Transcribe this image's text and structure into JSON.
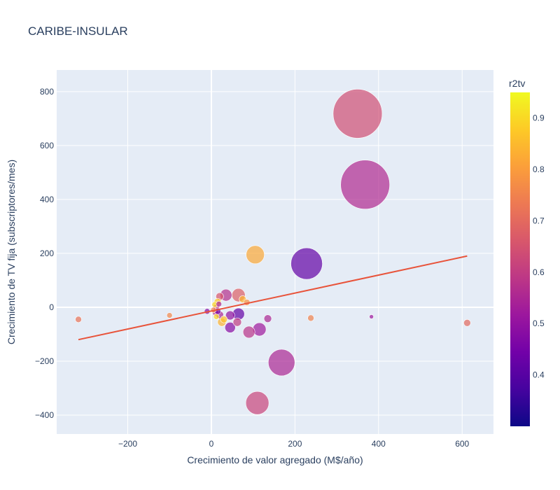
{
  "chart_data": {
    "type": "scatter",
    "title": "CARIBE-INSULAR",
    "xlabel": "Crecimiento de valor agregado (M$/año)",
    "ylabel": "Crecimiento de TV fija (subscriptores/mes)",
    "xlim": [
      -370,
      675
    ],
    "ylim": [
      -470,
      880
    ],
    "x_ticks": [
      -200,
      0,
      200,
      400,
      600
    ],
    "y_ticks": [
      -400,
      -200,
      0,
      200,
      400,
      600,
      800
    ],
    "x_tick_labels": [
      "−200",
      "0",
      "200",
      "400",
      "600"
    ],
    "y_tick_labels": [
      "−400",
      "−200",
      "0",
      "200",
      "400",
      "600",
      "800"
    ],
    "grid": true,
    "colorbar": {
      "title": "r2tv",
      "min": 0.3,
      "max": 0.95,
      "ticks": [
        0.4,
        0.5,
        0.6,
        0.7,
        0.8,
        0.9
      ],
      "tick_labels": [
        "0.4",
        "0.5",
        "0.6",
        "0.7",
        "0.8",
        "0.9"
      ],
      "colorscale": [
        "#0d0887",
        "#46039f",
        "#7201a8",
        "#9c179e",
        "#bd3786",
        "#d8576b",
        "#ed7953",
        "#fb9f3a",
        "#fdca26",
        "#f0f921"
      ]
    },
    "trendline": {
      "color": "#e8533a",
      "points": [
        [
          -318,
          -120
        ],
        [
          612,
          190
        ]
      ]
    },
    "points": [
      {
        "x": 350,
        "y": 718,
        "size": 70,
        "c": 0.64
      },
      {
        "x": 368,
        "y": 455,
        "size": 70,
        "c": 0.56
      },
      {
        "x": 228,
        "y": 162,
        "size": 45,
        "c": 0.42
      },
      {
        "x": 105,
        "y": 195,
        "size": 26,
        "c": 0.82
      },
      {
        "x": 168,
        "y": -205,
        "size": 38,
        "c": 0.55
      },
      {
        "x": 110,
        "y": -355,
        "size": 33,
        "c": 0.62
      },
      {
        "x": 115,
        "y": -82,
        "size": 19,
        "c": 0.52
      },
      {
        "x": 90,
        "y": -92,
        "size": 17,
        "c": 0.58
      },
      {
        "x": 135,
        "y": -42,
        "size": 11,
        "c": 0.55
      },
      {
        "x": 65,
        "y": 45,
        "size": 19,
        "c": 0.68
      },
      {
        "x": 35,
        "y": 45,
        "size": 17,
        "c": 0.57
      },
      {
        "x": 65,
        "y": -25,
        "size": 17,
        "c": 0.42
      },
      {
        "x": 45,
        "y": -75,
        "size": 15,
        "c": 0.48
      },
      {
        "x": 45,
        "y": -30,
        "size": 13,
        "c": 0.5
      },
      {
        "x": 62,
        "y": -55,
        "size": 12,
        "c": 0.6
      },
      {
        "x": 25,
        "y": -55,
        "size": 12,
        "c": 0.84
      },
      {
        "x": 20,
        "y": -28,
        "size": 11,
        "c": 0.55
      },
      {
        "x": 30,
        "y": -45,
        "size": 10,
        "c": 0.86
      },
      {
        "x": 20,
        "y": 40,
        "size": 11,
        "c": 0.66
      },
      {
        "x": 15,
        "y": 20,
        "size": 10,
        "c": 0.88
      },
      {
        "x": 12,
        "y": 0,
        "size": 9,
        "c": 0.62
      },
      {
        "x": 10,
        "y": -20,
        "size": 9,
        "c": 0.58
      },
      {
        "x": 15,
        "y": -15,
        "size": 9,
        "c": 0.45
      },
      {
        "x": 8,
        "y": 10,
        "size": 8,
        "c": 0.9
      },
      {
        "x": 18,
        "y": 12,
        "size": 8,
        "c": 0.55
      },
      {
        "x": 12,
        "y": -35,
        "size": 8,
        "c": 0.9
      },
      {
        "x": 75,
        "y": 30,
        "size": 10,
        "c": 0.84
      },
      {
        "x": 85,
        "y": 18,
        "size": 9,
        "c": 0.78
      },
      {
        "x": -10,
        "y": -15,
        "size": 8,
        "c": 0.48
      },
      {
        "x": 5,
        "y": -10,
        "size": 8,
        "c": 0.75
      },
      {
        "x": -318,
        "y": -45,
        "size": 9,
        "c": 0.72
      },
      {
        "x": -100,
        "y": -30,
        "size": 8,
        "c": 0.76
      },
      {
        "x": 238,
        "y": -40,
        "size": 9,
        "c": 0.75
      },
      {
        "x": 383,
        "y": -35,
        "size": 6,
        "c": 0.52
      },
      {
        "x": 612,
        "y": -58,
        "size": 10,
        "c": 0.7
      }
    ]
  }
}
